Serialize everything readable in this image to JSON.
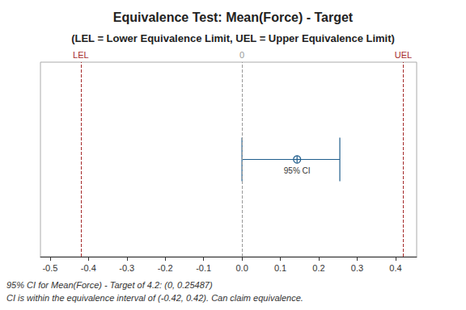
{
  "chart_data": {
    "type": "interval",
    "title": "Equivalence Test: Mean(Force) - Target",
    "subtitle": "(LEL = Lower Equivalence Limit, UEL = Upper Equivalence Limit)",
    "xlim": [
      -0.525,
      0.455
    ],
    "xticks": [
      -0.5,
      -0.4,
      -0.3,
      -0.2,
      -0.1,
      {
        "value": 0,
        "label": "0.0"
      },
      0.1,
      0.2,
      0.3,
      0.4
    ],
    "interval": {
      "lower": 0,
      "estimate": 0.1435,
      "upper": 0.25487,
      "label": "95% CI"
    },
    "color": "#1f5d8c",
    "reference_lines": [
      {
        "value": -0.42,
        "label": "LEL",
        "color": "#a52a2a",
        "line_style": "dashed"
      },
      {
        "value": 0,
        "label": "0",
        "color": "#999999",
        "line_style": "dashed"
      },
      {
        "value": 0.42,
        "label": "UEL",
        "color": "#a52a2a",
        "line_style": "dashed"
      }
    ],
    "annotations": [
      "95% CI for Mean(Force) - Target of 4.2: (0, 0.25487)",
      "CI is within the equivalence interval of (-0.42, 0.42). Can claim equivalence."
    ],
    "grid": false
  }
}
